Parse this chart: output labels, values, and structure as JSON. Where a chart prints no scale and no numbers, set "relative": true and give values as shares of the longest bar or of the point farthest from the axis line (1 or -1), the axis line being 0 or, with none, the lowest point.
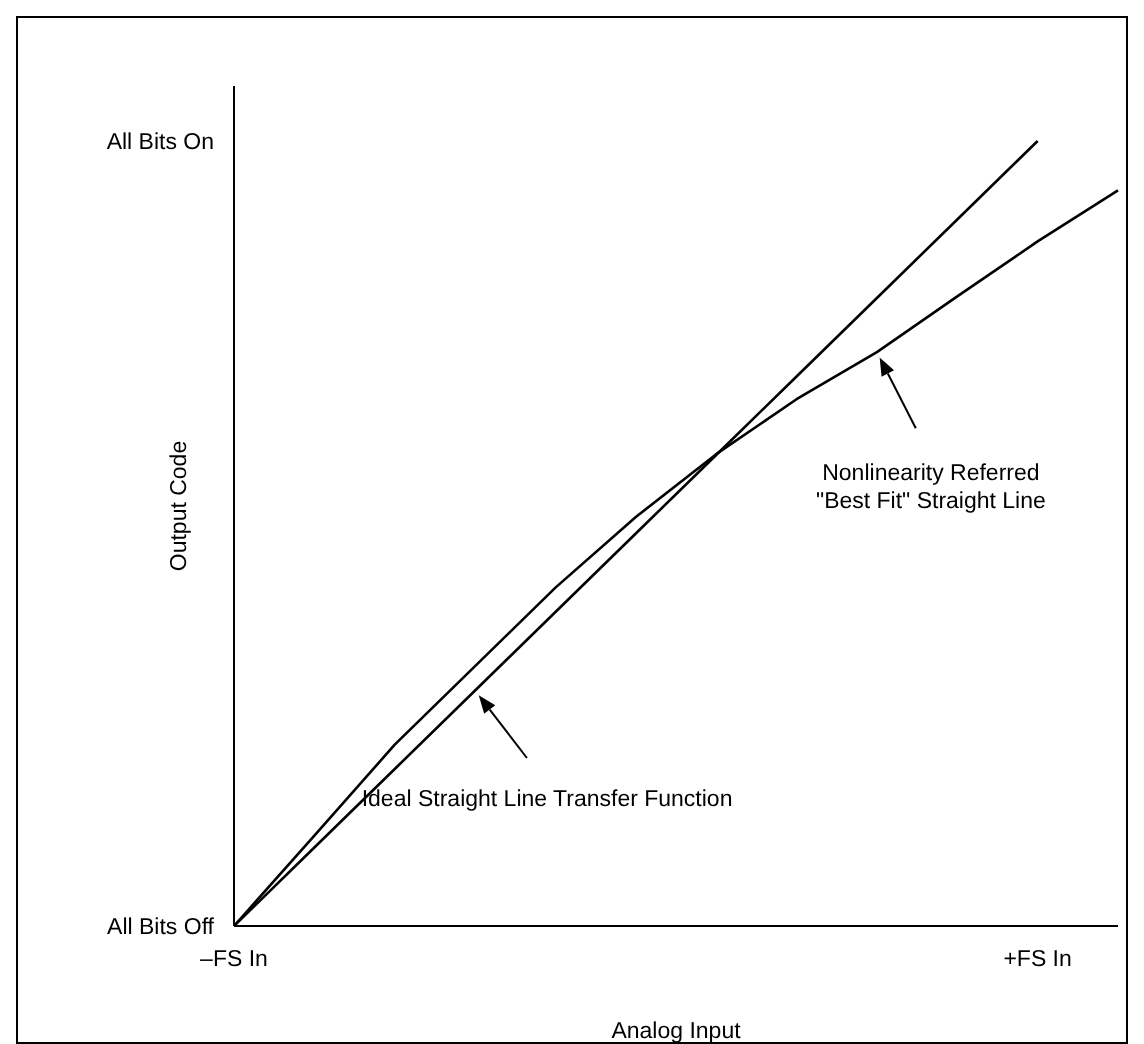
{
  "chart_data": {
    "type": "line",
    "xlabel": "Analog Input",
    "ylabel": "Output Code",
    "relative": true,
    "categories": [
      "–FS In",
      null,
      null,
      null,
      null,
      null,
      null,
      null,
      null,
      null,
      "+FS In",
      null
    ],
    "line_style": "solid",
    "series": [
      {
        "color": "#000000",
        "values": [
          0,
          0.1,
          0.2,
          0.3,
          0.4,
          0.5,
          0.6,
          0.7,
          0.8,
          0.9,
          1,
          null
        ]
      },
      {
        "color": "#000000",
        "values": [
          0,
          0.115,
          0.231,
          0.331,
          0.431,
          0.521,
          0.601,
          0.671,
          0.731,
          0.802,
          0.872,
          0.937
        ]
      }
    ],
    "annotations": [
      "Ideal Straight Line Transfer Function",
      "Nonlinearity Referred\n\"Best Fit\" Straight Line",
      "All Bits On",
      "All Bits Off"
    ]
  }
}
